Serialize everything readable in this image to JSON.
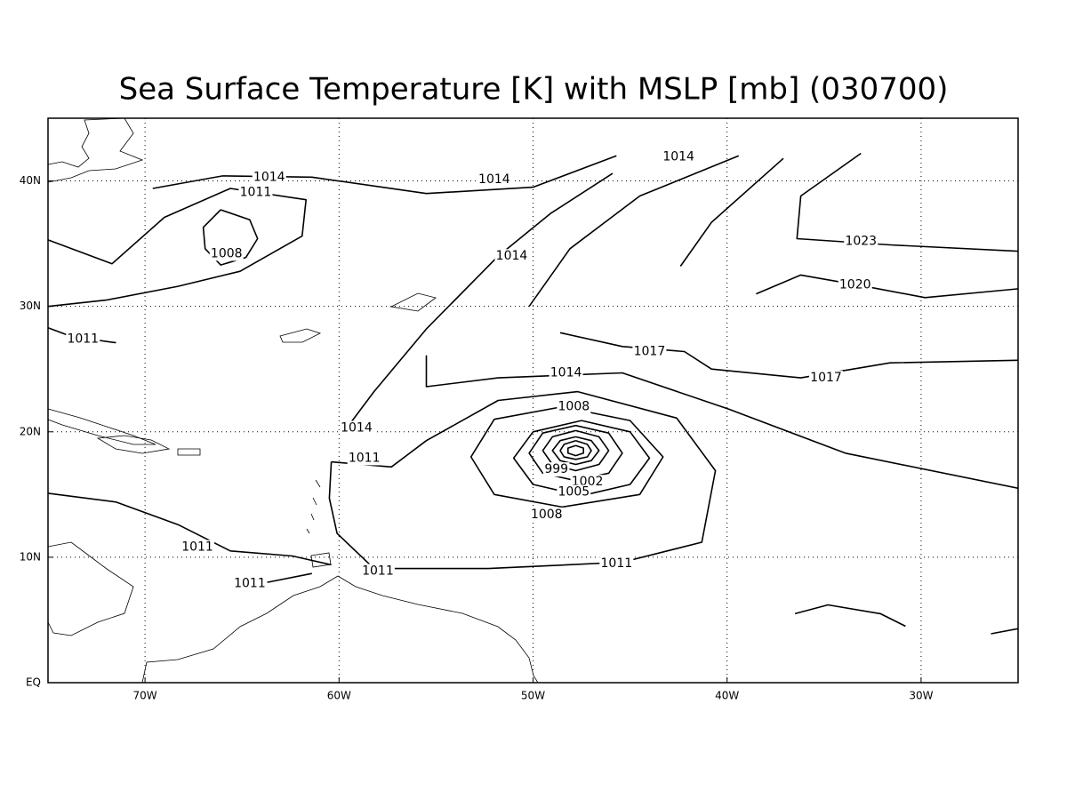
{
  "chart_data": {
    "type": "contour",
    "title": "Sea Surface Temperature [K] with MSLP [mb] (030700)",
    "xlim": [
      -75,
      -25
    ],
    "ylim": [
      0,
      45
    ],
    "xticks": [
      {
        "value": -70,
        "label": "70W"
      },
      {
        "value": -60,
        "label": "60W"
      },
      {
        "value": -50,
        "label": "50W"
      },
      {
        "value": -40,
        "label": "40W"
      },
      {
        "value": -30,
        "label": "30W"
      }
    ],
    "yticks": [
      {
        "value": 0,
        "label": "EQ"
      },
      {
        "value": 10,
        "label": "10N"
      },
      {
        "value": 20,
        "label": "20N"
      },
      {
        "value": 30,
        "label": "30N"
      },
      {
        "value": 40,
        "label": "40N"
      }
    ],
    "grid": true,
    "color": "#000000",
    "contours": [
      {
        "lon": [
          -69.6,
          -66.0,
          -61.4,
          -55.5,
          -50.0,
          -45.7
        ],
        "lat": [
          39.4,
          40.4,
          40.3,
          39.0,
          39.5,
          42.0
        ]
      },
      {
        "lon": [
          -75,
          -71.7,
          -69.0,
          -65.6,
          -61.7,
          -61.9,
          -65.1,
          -68.3,
          -72.0,
          -75
        ],
        "lat": [
          35.3,
          33.4,
          37.1,
          39.4,
          38.5,
          35.6,
          32.8,
          31.6,
          30.5,
          30.0
        ]
      },
      {
        "lon": [
          -66.1,
          -64.6,
          -64.2,
          -64.8,
          -66.1,
          -66.9,
          -67.0,
          -66.1
        ],
        "lat": [
          37.7,
          36.9,
          35.4,
          33.9,
          33.3,
          34.6,
          36.3,
          37.7
        ]
      },
      {
        "lon": [
          -75,
          -73.8,
          -71.5
        ],
        "lat": [
          28.3,
          27.6,
          27.1
        ]
      },
      {
        "lon": [
          -59.6,
          -58.2,
          -55.5,
          -51.8,
          -49.1,
          -45.9
        ],
        "lat": [
          20.3,
          23.2,
          28.2,
          34.0,
          37.4,
          40.6
        ]
      },
      {
        "lon": [
          -50.2,
          -48.1,
          -44.5,
          -39.4
        ],
        "lat": [
          30.0,
          34.6,
          38.8,
          42.0
        ]
      },
      {
        "lon": [
          -48.6,
          -45.4,
          -42.2,
          -40.8,
          -36.2,
          -31.6,
          -25
        ],
        "lat": [
          27.9,
          26.8,
          26.4,
          25.0,
          24.3,
          25.5,
          25.7
        ]
      },
      {
        "lon": [
          -42.4,
          -40.8,
          -37.1
        ],
        "lat": [
          33.2,
          36.7,
          41.8
        ]
      },
      {
        "lon": [
          -38.5,
          -36.2,
          -32.9,
          -29.8,
          -25
        ],
        "lat": [
          31.0,
          32.5,
          31.6,
          30.7,
          31.4
        ]
      },
      {
        "lon": [
          -33.1,
          -36.2,
          -36.4,
          -31.6,
          -25
        ],
        "lat": [
          42.2,
          38.8,
          35.4,
          34.9,
          34.4
        ]
      },
      {
        "lon": [
          -55.5,
          -55.5,
          -51.8,
          -45.4,
          -39.9,
          -33.9,
          -25
        ],
        "lat": [
          26.1,
          23.6,
          24.3,
          24.7,
          21.8,
          18.3,
          15.5
        ]
      },
      {
        "lon": [
          -60.4,
          -57.3,
          -55.5,
          -51.8,
          -47.7,
          -42.6,
          -40.6,
          -41.3,
          -45.4,
          -52.3,
          -58.2,
          -60.1,
          -60.5,
          -60.4
        ],
        "lat": [
          17.6,
          17.2,
          19.3,
          22.5,
          23.2,
          21.1,
          16.9,
          11.2,
          9.6,
          9.1,
          9.1,
          11.9,
          14.7,
          17.6
        ]
      },
      {
        "lon": [
          -48.5,
          -45.0,
          -43.3,
          -44.5,
          -48.5,
          -52.0,
          -53.2,
          -52.0,
          -48.5
        ],
        "lat": [
          22.0,
          20.9,
          18.0,
          15.0,
          14.0,
          15.0,
          18.0,
          21.0,
          22.0
        ]
      },
      {
        "lon": [
          -47.5,
          -45.0,
          -44.0,
          -45.0,
          -47.5,
          -50.0,
          -51.0,
          -50.0,
          -47.5
        ],
        "lat": [
          20.9,
          20.0,
          17.9,
          15.8,
          14.9,
          15.8,
          17.9,
          20.0,
          20.9
        ]
      },
      {
        "lon": [
          -47.8,
          -46.1,
          -45.4,
          -46.1,
          -47.8,
          -49.5,
          -50.2,
          -49.5,
          -47.8
        ],
        "lat": [
          20.5,
          19.9,
          18.3,
          16.7,
          16.1,
          16.7,
          18.3,
          19.9,
          20.5
        ]
      },
      {
        "lon": [
          -47.8,
          -46.6,
          -46.1,
          -46.6,
          -47.8,
          -49.0,
          -49.5,
          -49.0,
          -47.8
        ],
        "lat": [
          20.1,
          19.6,
          18.5,
          17.4,
          16.9,
          17.4,
          18.5,
          19.6,
          20.1
        ]
      },
      {
        "lon": [
          -47.8,
          -47.0,
          -46.6,
          -47.0,
          -47.8,
          -48.6,
          -49.0,
          -48.6,
          -47.8
        ],
        "lat": [
          19.6,
          19.3,
          18.5,
          17.7,
          17.4,
          17.7,
          18.5,
          19.3,
          19.6
        ]
      },
      {
        "lon": [
          -47.8,
          -47.2,
          -47.0,
          -47.2,
          -47.8,
          -48.4,
          -48.6,
          -48.4,
          -47.8
        ],
        "lat": [
          19.3,
          19.0,
          18.5,
          18.0,
          17.8,
          18.0,
          18.5,
          19.0,
          19.3
        ]
      },
      {
        "lon": [
          -47.8,
          -47.4,
          -47.4,
          -47.8,
          -48.2,
          -48.2,
          -47.8
        ],
        "lat": [
          18.9,
          18.7,
          18.3,
          18.1,
          18.3,
          18.7,
          18.9
        ]
      },
      {
        "lon": [
          -75,
          -71.5,
          -68.3,
          -65.6,
          -62.4,
          -60.4
        ],
        "lat": [
          15.1,
          14.4,
          12.6,
          10.5,
          10.1,
          9.4
        ]
      },
      {
        "lon": [
          -63.7,
          -61.4
        ],
        "lat": [
          8.0,
          8.7
        ]
      },
      {
        "lon": [
          -36.5,
          -34.8,
          -32.1,
          -30.8
        ],
        "lat": [
          5.5,
          6.2,
          5.5,
          4.5
        ]
      },
      {
        "lon": [
          -26.4,
          -25
        ],
        "lat": [
          3.9,
          4.3
        ]
      }
    ],
    "contour_labels": [
      {
        "level": 1014,
        "lon": -63.6,
        "lat": 40.3
      },
      {
        "level": 1011,
        "lon": -64.3,
        "lat": 39.1
      },
      {
        "level": 1008,
        "lon": -65.8,
        "lat": 34.2
      },
      {
        "level": 1014,
        "lon": -52.0,
        "lat": 40.1
      },
      {
        "level": 1014,
        "lon": -42.5,
        "lat": 41.9
      },
      {
        "level": 1014,
        "lon": -51.1,
        "lat": 34.0
      },
      {
        "level": 1023,
        "lon": -33.1,
        "lat": 35.2
      },
      {
        "level": 1020,
        "lon": -33.4,
        "lat": 31.7
      },
      {
        "level": 1011,
        "lon": -73.2,
        "lat": 27.4
      },
      {
        "level": 1017,
        "lon": -44.0,
        "lat": 26.4
      },
      {
        "level": 1017,
        "lon": -34.9,
        "lat": 24.3
      },
      {
        "level": 1014,
        "lon": -48.3,
        "lat": 24.7
      },
      {
        "level": 1008,
        "lon": -47.9,
        "lat": 22.0
      },
      {
        "level": 1014,
        "lon": -59.1,
        "lat": 20.3
      },
      {
        "level": 1011,
        "lon": -58.7,
        "lat": 17.9
      },
      {
        "level": 999,
        "lon": -48.8,
        "lat": 17.0
      },
      {
        "level": 1002,
        "lon": -47.2,
        "lat": 16.0
      },
      {
        "level": 1005,
        "lon": -47.9,
        "lat": 15.2
      },
      {
        "level": 1008,
        "lon": -49.3,
        "lat": 13.4
      },
      {
        "level": 1011,
        "lon": -67.3,
        "lat": 10.8
      },
      {
        "level": 1011,
        "lon": -45.7,
        "lat": 9.5
      },
      {
        "level": 1011,
        "lon": -58.0,
        "lat": 8.9
      },
      {
        "level": 1011,
        "lon": -64.6,
        "lat": 7.9
      }
    ]
  }
}
